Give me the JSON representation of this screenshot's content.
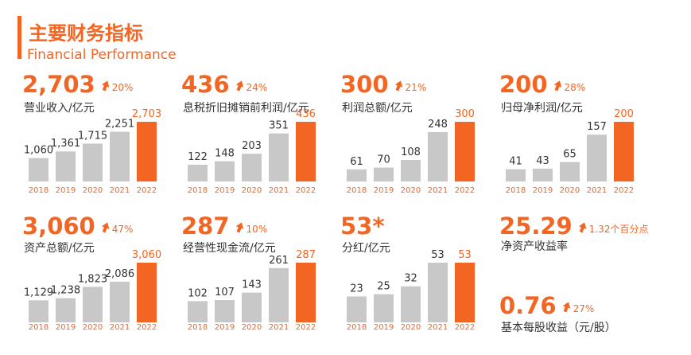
{
  "header": {
    "title": "主要财务指标",
    "subtitle": "Financial Performance"
  },
  "chart_data": [
    {
      "type": "bar",
      "headline": "2,703",
      "change": "20%",
      "label": "营业收入/亿元",
      "categories": [
        "2018",
        "2019",
        "2020",
        "2021",
        "2022"
      ],
      "values": [
        1060,
        1361,
        1715,
        2251,
        2703
      ],
      "value_labels": [
        "1,060",
        "1,361",
        "1,715",
        "2,251",
        "2,703"
      ],
      "colors": [
        "#c8c8c8",
        "#c8c8c8",
        "#c8c8c8",
        "#c8c8c8",
        "#f26522"
      ]
    },
    {
      "type": "bar",
      "headline": "436",
      "change": "24%",
      "label": "息税折旧摊销前利润/亿元",
      "categories": [
        "2018",
        "2019",
        "2020",
        "2021",
        "2022"
      ],
      "values": [
        122,
        148,
        203,
        351,
        436
      ],
      "colors": [
        "#c8c8c8",
        "#c8c8c8",
        "#c8c8c8",
        "#c8c8c8",
        "#f26522"
      ]
    },
    {
      "type": "bar",
      "headline": "300",
      "change": "21%",
      "label": "利润总额/亿元",
      "categories": [
        "2018",
        "2019",
        "2020",
        "2021",
        "2022"
      ],
      "values": [
        61,
        70,
        108,
        248,
        300
      ],
      "colors": [
        "#c8c8c8",
        "#c8c8c8",
        "#c8c8c8",
        "#c8c8c8",
        "#f26522"
      ]
    },
    {
      "type": "bar",
      "headline": "200",
      "change": "28%",
      "label": "归母净利润/亿元",
      "categories": [
        "2018",
        "2019",
        "2020",
        "2021",
        "2022"
      ],
      "values": [
        41,
        43,
        65,
        157,
        200
      ],
      "colors": [
        "#c8c8c8",
        "#c8c8c8",
        "#c8c8c8",
        "#c8c8c8",
        "#f26522"
      ]
    },
    {
      "type": "bar",
      "headline": "3,060",
      "change": "47%",
      "label": "资产总额/亿元",
      "categories": [
        "2018",
        "2019",
        "2020",
        "2021",
        "2022"
      ],
      "values": [
        1129,
        1238,
        1823,
        2086,
        3060
      ],
      "value_labels": [
        "1,129",
        "1,238",
        "1,823",
        "2,086",
        "3,060"
      ],
      "colors": [
        "#c8c8c8",
        "#c8c8c8",
        "#c8c8c8",
        "#c8c8c8",
        "#f26522"
      ]
    },
    {
      "type": "bar",
      "headline": "287",
      "change": "10%",
      "label": "经营性现金流/亿元",
      "categories": [
        "2018",
        "2019",
        "2020",
        "2021",
        "2022"
      ],
      "values": [
        102,
        107,
        143,
        261,
        287
      ],
      "colors": [
        "#c8c8c8",
        "#c8c8c8",
        "#c8c8c8",
        "#c8c8c8",
        "#f26522"
      ]
    },
    {
      "type": "bar",
      "headline": "53*",
      "label": "分红/亿元",
      "categories": [
        "2018",
        "2019",
        "2020",
        "2021",
        "2022"
      ],
      "values": [
        23,
        25,
        32,
        53,
        53
      ],
      "colors": [
        "#c8c8c8",
        "#c8c8c8",
        "#c8c8c8",
        "#c8c8c8",
        "#f26522"
      ]
    },
    {
      "type": "stat",
      "headline": "25.29",
      "change": "1.32个百分点",
      "label": "净资产收益率"
    },
    {
      "type": "stat",
      "headline": "0.76",
      "change": "27%",
      "label": "基本每股收益（元/股）"
    }
  ]
}
